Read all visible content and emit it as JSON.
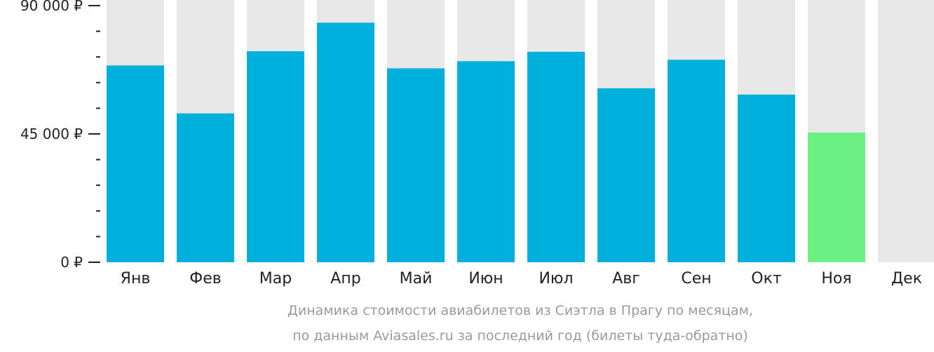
{
  "chart_data": {
    "type": "bar",
    "categories": [
      "Янв",
      "Фев",
      "Мар",
      "Апр",
      "Май",
      "Июн",
      "Июл",
      "Авг",
      "Сен",
      "Окт",
      "Ноя",
      "Дек"
    ],
    "values": [
      69000,
      52200,
      74000,
      84000,
      68000,
      70500,
      73800,
      61000,
      71000,
      58800,
      45500,
      null
    ],
    "highlight_index": 10,
    "ylim": [
      0,
      90000
    ],
    "yticks": [
      0,
      45000,
      90000
    ],
    "ytick_labels": [
      "0 ₽",
      "45 000 ₽",
      "90 000 ₽"
    ],
    "minor_ticks": 10,
    "title": "",
    "xlabel": "",
    "ylabel": "",
    "colors": {
      "bar": "#00b0dc",
      "highlight": "#6cf083",
      "background_bar": "#e8e8e8",
      "axis": "#222222"
    }
  },
  "caption": {
    "line1": "Динамика стоимости авиабилетов из Сиэтла в Прагу по месяцам,",
    "line2": "по данным Aviasales.ru за последний год (билеты туда-обратно)"
  }
}
